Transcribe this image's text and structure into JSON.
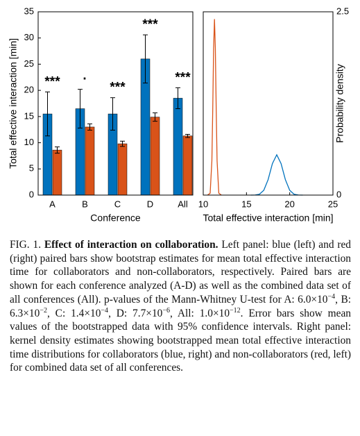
{
  "chart_data": [
    {
      "type": "bar",
      "ylabel": "Total effective interaction [min]",
      "xlabel": "Conference",
      "categories": [
        "A",
        "B",
        "C",
        "D",
        "All"
      ],
      "ylim": [
        0,
        35
      ],
      "yticks": [
        0,
        5,
        10,
        15,
        20,
        25,
        30,
        35
      ],
      "series": [
        {
          "color": "#0072bd",
          "values": [
            15.5,
            16.5,
            15.5,
            26,
            18.5
          ],
          "errors": [
            4.2,
            3.7,
            3.1,
            4.6,
            2
          ]
        },
        {
          "color": "#d95319",
          "values": [
            8.6,
            13,
            9.8,
            14.9,
            11.3
          ],
          "errors": [
            0.6,
            0.6,
            0.5,
            0.8,
            0.3
          ]
        }
      ],
      "significance_labels": [
        "***",
        "·",
        "***",
        "***",
        "***"
      ]
    },
    {
      "type": "line",
      "xlabel": "Total effective interaction [min]",
      "ylabel": "Probability density",
      "xlim": [
        10,
        25
      ],
      "xticks": [
        10,
        15,
        20,
        25
      ],
      "ylim": [
        0,
        2.5
      ],
      "yticks": [
        0,
        2.5
      ],
      "yaxis_side": "right",
      "series": [
        {
          "color": "#d95319",
          "x": [
            10.5,
            10.8,
            11.0,
            11.1,
            11.2,
            11.3,
            11.4,
            11.5,
            11.6,
            11.8,
            12.1
          ],
          "values": [
            0,
            0.026,
            0.47,
            1.17,
            2.0,
            2.4,
            2.0,
            1.17,
            0.47,
            0.026,
            0
          ]
        },
        {
          "color": "#0072bd",
          "x": [
            15.5,
            16,
            16.5,
            17,
            17.5,
            18,
            18.5,
            19,
            19.5,
            20,
            20.5,
            21,
            21.5
          ],
          "values": [
            0,
            0.001,
            0.012,
            0.065,
            0.21,
            0.43,
            0.55,
            0.43,
            0.21,
            0.065,
            0.012,
            0.001,
            0
          ]
        }
      ]
    }
  ],
  "caption": {
    "label": "FIG. 1.",
    "title": "Effect of interaction on collaboration.",
    "parts": [
      "Left panel: blue (left) and red (right) paired bars show bootstrap estimates for mean total effective interaction time for collaborators and non-collaborators, respectively. Paired bars are shown for each conference analyzed (A-D) as well as the combined data set of all conferences (All). p-values of the Mann-Whitney U-test for A: 6.0×10",
      "−4",
      ", B: 6.3×10",
      "−2",
      ", C: 1.4×10",
      "−4",
      ", D: 7.7×10",
      "−6",
      ", All: 1.0×10",
      "−12",
      ". Error bars show mean values of the bootstrapped data with 95% confidence intervals. Right panel: kernel density estimates showing bootstrapped mean total effective interaction time distributions for collaborators (blue, right) and non-collaborators (red, left) for combined data set of all conferences."
    ]
  }
}
